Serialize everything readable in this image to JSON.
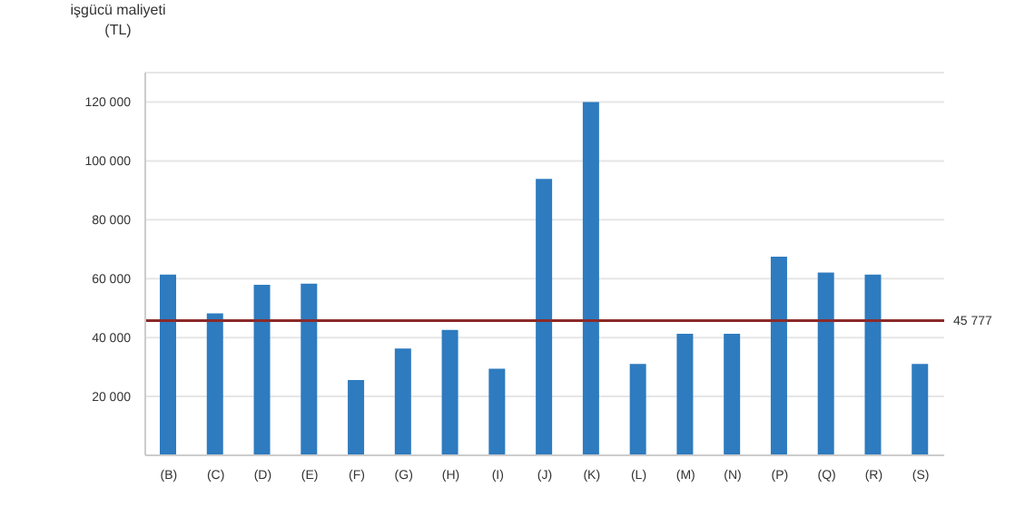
{
  "chart_data": {
    "type": "bar",
    "ylabel": "işgücü maliyeti\n(TL)",
    "categories": [
      "(B)",
      "(C)",
      "(D)",
      "(E)",
      "(F)",
      "(G)",
      "(H)",
      "(I)",
      "(J)",
      "(K)",
      "(L)",
      "(M)",
      "(N)",
      "(P)",
      "(Q)",
      "(R)",
      "(S)"
    ],
    "values": [
      61400,
      48200,
      57900,
      58300,
      25600,
      36300,
      42600,
      29400,
      93900,
      120000,
      31000,
      41300,
      41300,
      67500,
      62100,
      61400,
      31000
    ],
    "color": "#2e7bbf",
    "ylim": [
      0,
      130000
    ],
    "yticks": [
      {
        "value": 20000,
        "label": "20 000"
      },
      {
        "value": 40000,
        "label": "40 000"
      },
      {
        "value": 60000,
        "label": "60 000"
      },
      {
        "value": 80000,
        "label": "80 000"
      },
      {
        "value": 100000,
        "label": "100 000"
      },
      {
        "value": 120000,
        "label": "120 000"
      }
    ],
    "grid": "y",
    "ref_lines": [
      {
        "axis": "y",
        "value": 45777,
        "label": "45 777",
        "color": "#8b2a2a"
      }
    ]
  }
}
